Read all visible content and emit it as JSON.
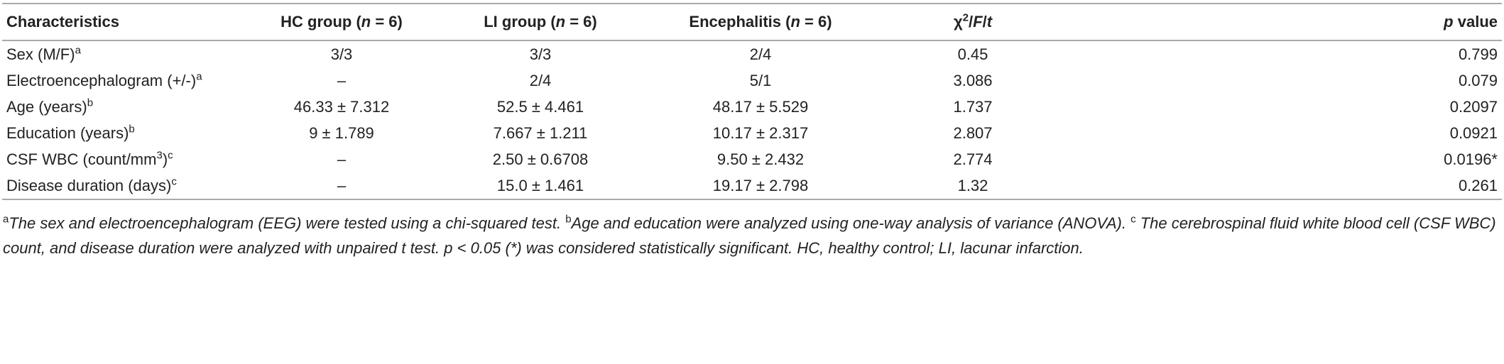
{
  "table": {
    "columns": [
      [
        {
          "t": "Characteristics"
        }
      ],
      [
        {
          "t": "HC group ("
        },
        {
          "t": "n",
          "i": true
        },
        {
          "t": " = 6)"
        }
      ],
      [
        {
          "t": "LI group ("
        },
        {
          "t": "n",
          "i": true
        },
        {
          "t": " = 6)"
        }
      ],
      [
        {
          "t": "Encephalitis ("
        },
        {
          "t": "n",
          "i": true
        },
        {
          "t": " = 6)"
        }
      ],
      [
        {
          "t": "χ"
        },
        {
          "t": "2",
          "sup": true
        },
        {
          "t": "/"
        },
        {
          "t": "F",
          "i": true
        },
        {
          "t": "/"
        },
        {
          "t": "t",
          "i": true
        }
      ],
      [
        {
          "t": "p",
          "i": true
        },
        {
          "t": " value"
        }
      ]
    ],
    "rows": [
      {
        "label": [
          {
            "t": "Sex (M/F)"
          },
          {
            "t": "a",
            "sup": true
          }
        ],
        "cells": [
          "3/3",
          "3/3",
          "2/4",
          "0.45",
          "0.799"
        ]
      },
      {
        "label": [
          {
            "t": "Electroencephalogram (+/-)"
          },
          {
            "t": "a",
            "sup": true
          }
        ],
        "cells": [
          "–",
          "2/4",
          "5/1",
          "3.086",
          "0.079"
        ]
      },
      {
        "label": [
          {
            "t": "Age (years)"
          },
          {
            "t": "b",
            "sup": true
          }
        ],
        "cells": [
          "46.33 ± 7.312",
          "52.5 ± 4.461",
          "48.17 ± 5.529",
          "1.737",
          "0.2097"
        ]
      },
      {
        "label": [
          {
            "t": "Education (years)"
          },
          {
            "t": "b",
            "sup": true
          }
        ],
        "cells": [
          "9 ± 1.789",
          "7.667 ± 1.211",
          "10.17 ± 2.317",
          "2.807",
          "0.0921"
        ]
      },
      {
        "label": [
          {
            "t": "CSF WBC (count/mm"
          },
          {
            "t": "3",
            "sup": true
          },
          {
            "t": ")"
          },
          {
            "t": "c",
            "sup": true
          }
        ],
        "cells": [
          "–",
          "2.50 ± 0.6708",
          "9.50 ± 2.432",
          "2.774",
          "0.0196*"
        ]
      },
      {
        "label": [
          {
            "t": "Disease duration (days)"
          },
          {
            "t": "c",
            "sup": true
          }
        ],
        "cells": [
          "–",
          "15.0 ± 1.461",
          "19.17 ± 2.798",
          "1.32",
          "0.261"
        ]
      }
    ],
    "footnote": [
      {
        "t": "a",
        "sup": true
      },
      {
        "t": "The sex and electroencephalogram (EEG) were tested using a chi-squared test. ",
        "i": true
      },
      {
        "t": "b",
        "sup": true
      },
      {
        "t": "Age and education were analyzed using one-way analysis of variance (ANOVA). ",
        "i": true
      },
      {
        "t": "c",
        "sup": true
      },
      {
        "t": " The cerebrospinal fluid white blood cell (CSF WBC) count, and disease duration were analyzed with unpaired t test. p < 0.05 (*) was considered statistically significant. HC, healthy control; LI, lacunar infarction.",
        "i": true
      }
    ]
  }
}
